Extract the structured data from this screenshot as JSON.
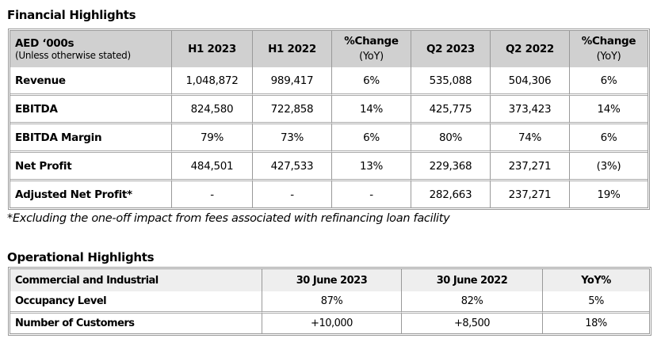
{
  "financial": {
    "title": "Financial Highlights",
    "header": {
      "label": "AED ‘000s",
      "sublabel": "(Unless otherwise stated)",
      "cols": [
        "H1 2023",
        "H1 2022",
        "%Change",
        "Q2 2023",
        "Q2 2022",
        "%Change"
      ],
      "yoy": "(YoY)"
    },
    "rows": [
      {
        "label": "Revenue",
        "values": [
          "1,048,872",
          "989,417",
          "6%",
          "535,088",
          "504,306",
          "6%"
        ]
      },
      {
        "label": "EBITDA",
        "values": [
          "824,580",
          "722,858",
          "14%",
          "425,775",
          "373,423",
          "14%"
        ]
      },
      {
        "label": "EBITDA Margin",
        "values": [
          "79%",
          "73%",
          "6%",
          "80%",
          "74%",
          "6%"
        ]
      },
      {
        "label": "Net Profit",
        "values": [
          "484,501",
          "427,533",
          "13%",
          "229,368",
          "237,271",
          "(3%)"
        ]
      },
      {
        "label": "Adjusted Net Profit*",
        "values": [
          "-",
          "-",
          "-",
          "282,663",
          "237,271",
          "19%"
        ]
      }
    ],
    "footnote": "*Excluding the one-off impact from fees associated with refinancing loan facility"
  },
  "operational": {
    "title": "Operational Highlights",
    "header": [
      "Commercial and Industrial",
      "30 June 2023",
      "30 June 2022",
      "YoY%"
    ],
    "rows": [
      {
        "label": "Occupancy Level",
        "values": [
          "87%",
          "82%",
          "5%"
        ]
      },
      {
        "label": "Number of Customers",
        "values": [
          "+10,000",
          "+8,500",
          "18%"
        ]
      }
    ]
  }
}
